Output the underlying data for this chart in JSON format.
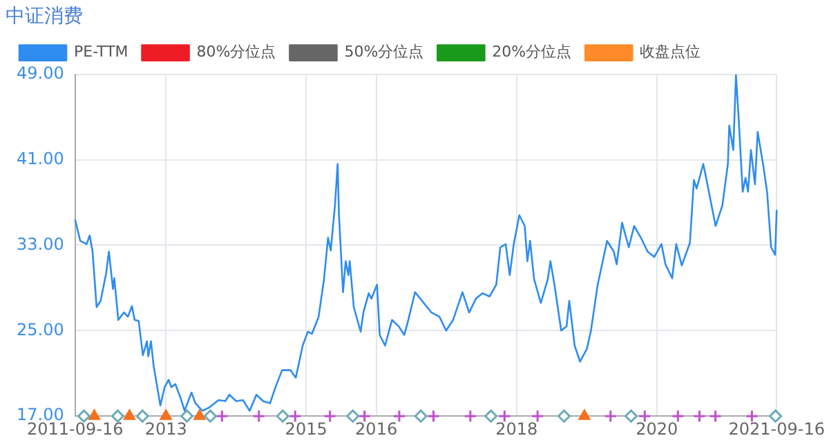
{
  "chart_data": {
    "type": "line",
    "title": "中证消费",
    "legend": "top",
    "grid": true,
    "marker": "none",
    "line_style": "solid",
    "xlim": [
      "2011-09-16",
      "2021-09-16"
    ],
    "xticks": [
      "2011-09-16",
      {
        "value": "2013-01-01",
        "label": "2013"
      },
      {
        "value": "2015-01-01",
        "label": "2015"
      },
      {
        "value": "2016-01-01",
        "label": "2016"
      },
      {
        "value": "2018-01-01",
        "label": "2018"
      },
      {
        "value": "2020-01-01",
        "label": "2020"
      },
      "2021-09-16"
    ],
    "ylim": [
      17,
      49
    ],
    "yticks": [
      {
        "value": 17,
        "label": "17.00"
      },
      {
        "value": 25,
        "label": "25.00"
      },
      {
        "value": 33,
        "label": "33.00"
      },
      {
        "value": 41,
        "label": "41.00"
      },
      {
        "value": 49,
        "label": "49.00"
      }
    ],
    "series": [
      {
        "name": "PE-TTM",
        "type": "line",
        "color": "#2f8cf0",
        "x": [
          "2011-09-16",
          "2011-10-13",
          "2011-11-15",
          "2011-12-01",
          "2011-12-16",
          "2012-01-06",
          "2012-01-27",
          "2012-02-25",
          "2012-03-10",
          "2012-03-31",
          "2012-04-07",
          "2012-04-28",
          "2012-05-27",
          "2012-06-17",
          "2012-07-08",
          "2012-07-22",
          "2012-08-12",
          "2012-09-03",
          "2012-09-24",
          "2012-10-01",
          "2012-10-15",
          "2012-10-29",
          "2012-12-03",
          "2012-12-25",
          "2013-01-15",
          "2013-01-29",
          "2013-02-19",
          "2013-03-18",
          "2013-04-08",
          "2013-05-14",
          "2013-06-04",
          "2013-07-09",
          "2013-08-14",
          "2013-10-02",
          "2013-11-06",
          "2013-11-27",
          "2014-01-02",
          "2014-02-06",
          "2014-03-13",
          "2014-04-17",
          "2014-05-22",
          "2014-06-27",
          "2014-07-25",
          "2014-08-29",
          "2014-10-11",
          "2014-11-08",
          "2014-12-14",
          "2015-01-10",
          "2015-01-31",
          "2015-03-07",
          "2015-04-04",
          "2015-04-25",
          "2015-05-09",
          "2015-05-31",
          "2015-06-14",
          "2015-06-21",
          "2015-07-12",
          "2015-07-26",
          "2015-08-09",
          "2015-08-16",
          "2015-09-06",
          "2015-10-12",
          "2015-10-26",
          "2015-11-23",
          "2015-12-07",
          "2016-01-05",
          "2016-01-19",
          "2016-02-16",
          "2016-03-23",
          "2016-04-27",
          "2016-05-26",
          "2016-06-16",
          "2016-07-21",
          "2016-08-26",
          "2016-10-14",
          "2016-11-25",
          "2016-12-30",
          "2017-02-04",
          "2017-03-25",
          "2017-04-29",
          "2017-06-03",
          "2017-07-08",
          "2017-08-13",
          "2017-09-17",
          "2017-10-08",
          "2017-11-05",
          "2017-11-26",
          "2017-12-17",
          "2018-01-15",
          "2018-02-12",
          "2018-02-26",
          "2018-03-12",
          "2018-04-02",
          "2018-05-07",
          "2018-06-12",
          "2018-06-26",
          "2018-07-17",
          "2018-08-21",
          "2018-09-18",
          "2018-10-02",
          "2018-10-30",
          "2018-11-27",
          "2019-01-02",
          "2019-01-23",
          "2019-02-27",
          "2019-04-17",
          "2019-05-22",
          "2019-06-06",
          "2019-07-04",
          "2019-08-08",
          "2019-09-05",
          "2019-10-10",
          "2019-11-14",
          "2019-12-19",
          "2020-01-25",
          "2020-02-15",
          "2020-03-21",
          "2020-04-11",
          "2020-05-10",
          "2020-06-21",
          "2020-07-12",
          "2020-07-26",
          "2020-08-30",
          "2020-09-28",
          "2020-11-02",
          "2020-12-07",
          "2021-01-05",
          "2021-01-12",
          "2021-02-02",
          "2021-02-16",
          "2021-03-02",
          "2021-03-23",
          "2021-04-07",
          "2021-04-20",
          "2021-05-05",
          "2021-05-26",
          "2021-06-09",
          "2021-07-07",
          "2021-07-28",
          "2021-08-18",
          "2021-09-08",
          "2021-09-16"
        ],
        "values": [
          35.4,
          33.4,
          33.1,
          33.9,
          32.4,
          27.2,
          27.8,
          30.4,
          32.4,
          28.9,
          29.9,
          26.0,
          26.7,
          26.3,
          27.3,
          26.0,
          25.9,
          22.7,
          24.0,
          22.6,
          24.0,
          21.7,
          18.0,
          19.7,
          20.4,
          19.7,
          20.0,
          18.7,
          17.5,
          19.2,
          18.2,
          17.5,
          17.8,
          18.5,
          18.4,
          19.0,
          18.4,
          18.5,
          17.5,
          19.0,
          18.4,
          18.2,
          19.7,
          21.3,
          21.3,
          20.6,
          23.6,
          24.9,
          24.7,
          26.3,
          29.8,
          33.7,
          32.5,
          36.7,
          40.6,
          35.8,
          28.6,
          31.5,
          30.2,
          31.5,
          27.2,
          24.9,
          26.7,
          28.5,
          28.0,
          29.3,
          24.6,
          23.6,
          26.0,
          25.4,
          24.6,
          26.0,
          28.6,
          27.8,
          26.7,
          26.3,
          25.0,
          26.0,
          28.6,
          26.7,
          28.0,
          28.5,
          28.2,
          29.3,
          32.8,
          33.1,
          30.2,
          33.1,
          35.8,
          34.8,
          31.5,
          33.4,
          29.8,
          27.6,
          29.8,
          31.5,
          29.3,
          25.0,
          25.4,
          27.8,
          23.6,
          22.1,
          23.3,
          25.0,
          29.3,
          33.4,
          32.4,
          31.2,
          35.1,
          32.8,
          34.8,
          33.7,
          32.4,
          31.9,
          33.1,
          31.2,
          29.9,
          33.1,
          31.1,
          33.2,
          39.1,
          38.3,
          40.6,
          38.0,
          34.8,
          36.7,
          40.6,
          44.2,
          41.9,
          48.9,
          44.9,
          38.0,
          39.3,
          38.0,
          41.9,
          38.7,
          43.6,
          40.6,
          38.0,
          32.8,
          32.1,
          36.3
        ]
      },
      {
        "name": "80%分位点",
        "type": "line",
        "color": "#ee1c25",
        "values": [
          null
        ]
      },
      {
        "name": "50%分位点",
        "type": "line",
        "color": "#666666",
        "values": [
          null
        ]
      },
      {
        "name": "20%分位点",
        "type": "line",
        "color": "#1a9a1a",
        "values": [
          null
        ]
      },
      {
        "name": "收盘点位",
        "type": "line",
        "color": "#ff8a2a",
        "values": [
          null
        ]
      },
      {
        "type": "scatter",
        "marker": "diamond",
        "color": "#6aaab8",
        "x": [
          "2011-11-01",
          "2012-04-25",
          "2012-09-01",
          "2013-04-20",
          "2013-08-20",
          "2014-09-01",
          "2015-09-01",
          "2016-08-20",
          "2017-08-20",
          "2018-09-05",
          "2019-08-20",
          "2021-09-10"
        ],
        "values": [
          17,
          17,
          17,
          17,
          17,
          17,
          17,
          17,
          17,
          17,
          17,
          17
        ]
      },
      {
        "type": "scatter",
        "marker": "triangle",
        "color": "#f5701e",
        "x": [
          "2011-12-25",
          "2012-06-25",
          "2013-01-01",
          "2013-06-25",
          "2018-12-20"
        ],
        "values": [
          17,
          17,
          17,
          17,
          17
        ]
      },
      {
        "type": "scatter",
        "marker": "cross",
        "color": "#c04fd0",
        "x": [
          "2013-10-20",
          "2014-04-30",
          "2014-11-05",
          "2015-05-05",
          "2015-11-01",
          "2016-04-30",
          "2016-10-25",
          "2017-05-05",
          "2017-10-30",
          "2018-04-20",
          "2019-05-05",
          "2019-10-30",
          "2020-04-20",
          "2020-08-10",
          "2020-11-01",
          "2021-05-10"
        ],
        "values": [
          17,
          17,
          17,
          17,
          17,
          17,
          17,
          17,
          17,
          17,
          17,
          17,
          17,
          17,
          17,
          17
        ]
      }
    ]
  }
}
